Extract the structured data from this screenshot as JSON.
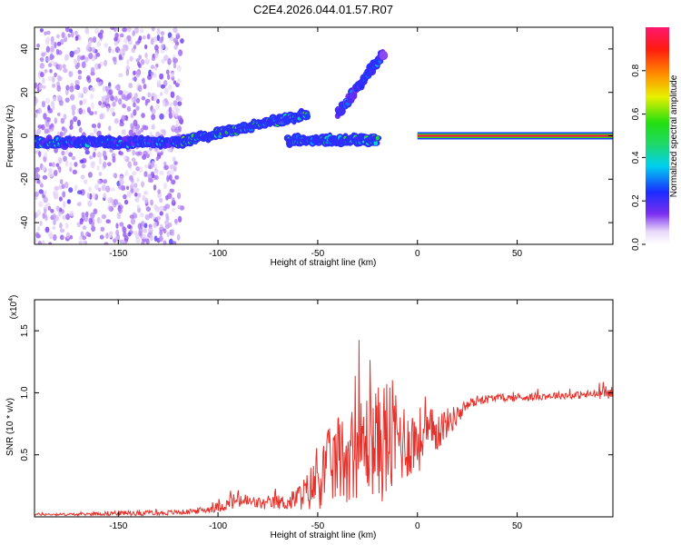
{
  "title": "C2E4.2026.044.01.57.R07",
  "colors": {
    "snr_line": "#e8302a",
    "frame": "#000000",
    "background": "#ffffff"
  },
  "chart_data": [
    {
      "type": "heatmap",
      "name": "spectrogram",
      "xlabel": "Height of straight line (km)",
      "ylabel": "Frequency (Hz)",
      "xlim": [
        -192,
        98
      ],
      "ylim": [
        -50,
        50
      ],
      "xticks": [
        "-150",
        "-100",
        "-50",
        "0",
        "50"
      ],
      "xtick_values": [
        -150,
        -100,
        -50,
        0,
        50
      ],
      "yticks": [
        "-40",
        "-20",
        "0",
        "20",
        "40"
      ],
      "ytick_values": [
        -40,
        -20,
        0,
        20,
        40
      ],
      "colorbar": {
        "label": "Normalized spectral amplitude",
        "range": [
          0,
          1
        ],
        "ticks": [
          "0.0",
          "0.2",
          "0.4",
          "0.6",
          "0.8"
        ],
        "tick_values": [
          0.0,
          0.2,
          0.4,
          0.6,
          0.8
        ]
      },
      "features": [
        {
          "kind": "band",
          "x_start": -192,
          "x_end": -120,
          "freq": -3,
          "amplitude": 0.3
        },
        {
          "kind": "rising_track",
          "x_start": -120,
          "x_end": -55,
          "freq_start": -3,
          "freq_end": 10,
          "amplitude": 0.45
        },
        {
          "kind": "band",
          "x_start": -65,
          "x_end": -20,
          "freq": -2,
          "amplitude": 0.4
        },
        {
          "kind": "rising_track",
          "x_start": -40,
          "x_end": -17,
          "freq_start": 10,
          "freq_end": 38,
          "amplitude": 0.25
        },
        {
          "kind": "steady_line",
          "x_start": 0,
          "x_end": 98,
          "freq": 0,
          "amplitude": 0.95
        }
      ],
      "scatter_region": {
        "x_start": -192,
        "x_end": -118,
        "freq_range": [
          -50,
          50
        ],
        "amplitude": 0.05
      }
    },
    {
      "type": "line",
      "name": "snr",
      "xlabel": "Height of straight line (km)",
      "ylabel": "SNR (10 * v/v)",
      "multiplier_label": "(x10",
      "multiplier_exponent": "4",
      "multiplier_close": ")",
      "xlim": [
        -192,
        98
      ],
      "ylim": [
        0,
        1.75
      ],
      "xticks": [
        "-150",
        "-100",
        "-50",
        "0",
        "50"
      ],
      "xtick_values": [
        -150,
        -100,
        -50,
        0,
        50
      ],
      "yticks": [
        "0.5",
        "1.0",
        "1.5"
      ],
      "ytick_values": [
        0.5,
        1.0,
        1.5
      ],
      "series": [
        {
          "name": "SNR",
          "x": [
            -192,
            -170,
            -150,
            -130,
            -115,
            -105,
            -95,
            -90,
            -85,
            -80,
            -75,
            -70,
            -65,
            -60,
            -55,
            -50,
            -45,
            -40,
            -35,
            -30,
            -25,
            -20,
            -15,
            -10,
            -5,
            0,
            5,
            10,
            15,
            20,
            25,
            30,
            40,
            50,
            60,
            70,
            80,
            90,
            98
          ],
          "y": [
            0.02,
            0.02,
            0.03,
            0.03,
            0.04,
            0.06,
            0.1,
            0.14,
            0.12,
            0.11,
            0.1,
            0.12,
            0.11,
            0.16,
            0.2,
            0.3,
            0.4,
            0.45,
            0.5,
            0.55,
            0.6,
            0.6,
            0.62,
            0.64,
            0.6,
            0.62,
            0.66,
            0.7,
            0.76,
            0.82,
            0.9,
            0.94,
            0.96,
            0.96,
            0.97,
            0.98,
            0.98,
            0.99,
            1.0
          ],
          "noise_spread": [
            0.01,
            0.01,
            0.02,
            0.02,
            0.02,
            0.03,
            0.05,
            0.08,
            0.06,
            0.05,
            0.05,
            0.06,
            0.06,
            0.1,
            0.16,
            0.25,
            0.3,
            0.35,
            0.38,
            0.4,
            0.42,
            0.45,
            0.55,
            0.4,
            0.3,
            0.28,
            0.22,
            0.18,
            0.12,
            0.08,
            0.05,
            0.04,
            0.03,
            0.03,
            0.03,
            0.03,
            0.03,
            0.04,
            0.05
          ]
        }
      ]
    }
  ]
}
